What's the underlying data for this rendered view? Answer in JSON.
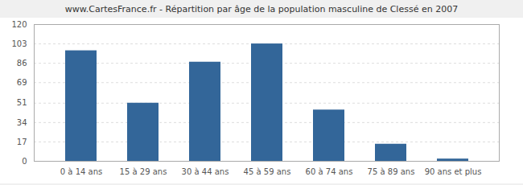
{
  "chart_data": {
    "type": "bar",
    "title": "www.CartesFrance.fr - Répartition par âge de la population masculine de Clessé en 2007",
    "categories": [
      "0 à 14 ans",
      "15 à 29 ans",
      "30 à 44 ans",
      "45 à 59 ans",
      "60 à 74 ans",
      "75 à 89 ans",
      "90 ans et plus"
    ],
    "values": [
      97,
      51,
      87,
      103,
      45,
      15,
      2
    ],
    "color": "#336699",
    "ylim": [
      0,
      120
    ],
    "yticks": [
      0,
      17,
      34,
      51,
      69,
      86,
      103,
      120
    ],
    "grid": true
  }
}
